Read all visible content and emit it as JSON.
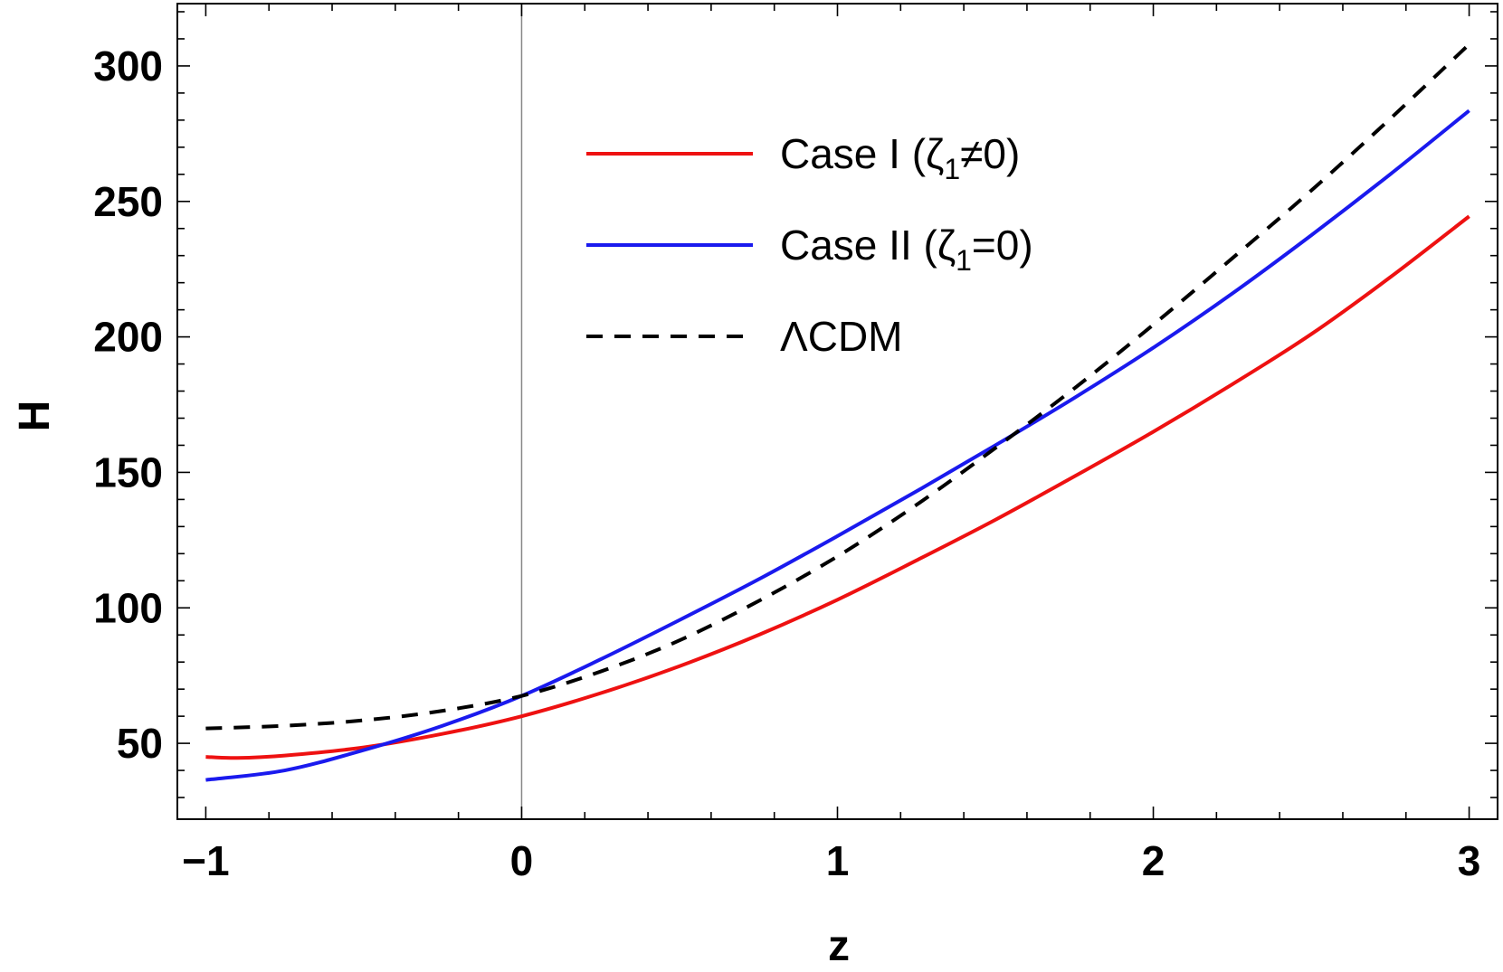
{
  "chart_data": {
    "type": "line",
    "xlabel": "z",
    "ylabel": "H",
    "xlim": [
      -1.09,
      3.09
    ],
    "ylim": [
      22,
      323
    ],
    "x_ticks": [
      -1,
      0,
      1,
      2,
      3
    ],
    "x_tick_labels": [
      "−1",
      "0",
      "1",
      "2",
      "3"
    ],
    "y_ticks": [
      50,
      100,
      150,
      200,
      250,
      300
    ],
    "y_tick_labels": [
      "50",
      "100",
      "150",
      "200",
      "250",
      "300"
    ],
    "legend_position": "top-right",
    "series": [
      {
        "name": "Case I (ζ1≠0)",
        "label_main": "Case I (ζ",
        "label_sub": "1",
        "label_tail": "≠0)",
        "color": "#ee1111",
        "dash": "solid",
        "x": [
          -1,
          -0.9,
          -0.75,
          -0.5,
          -0.25,
          0,
          0.25,
          0.5,
          0.75,
          1,
          1.25,
          1.5,
          1.75,
          2,
          2.25,
          2.5,
          2.75,
          3
        ],
        "y": [
          45,
          44.6,
          45.5,
          48.5,
          53.5,
          60,
          68.5,
          78.5,
          90,
          103,
          117.5,
          132.5,
          148.5,
          165,
          182.5,
          201,
          222,
          244.5
        ]
      },
      {
        "name": "Case II (ζ1=0)",
        "label_main": "Case II (ζ",
        "label_sub": "1",
        "label_tail": "=0)",
        "color": "#1a1aee",
        "dash": "solid",
        "x": [
          -1,
          -0.75,
          -0.5,
          -0.25,
          0,
          0.25,
          0.5,
          0.75,
          1,
          1.25,
          1.5,
          1.75,
          2,
          2.25,
          2.5,
          2.75,
          3
        ],
        "y": [
          36.5,
          40,
          47.5,
          56.5,
          67.5,
          81,
          95.5,
          110.5,
          126.5,
          143,
          160,
          177.5,
          196,
          216,
          237.5,
          260,
          283.5
        ]
      },
      {
        "name": "ΛCDM",
        "label_main": "ΛCDM",
        "label_sub": "",
        "label_tail": "",
        "color": "#000000",
        "dash": "dashed",
        "x": [
          -1,
          -0.75,
          -0.5,
          -0.25,
          0,
          0.25,
          0.5,
          0.75,
          1,
          1.25,
          1.5,
          1.75,
          2,
          2.25,
          2.5,
          2.75,
          3
        ],
        "y": [
          55.5,
          56.5,
          58.5,
          62,
          67.5,
          76.5,
          88,
          102.5,
          119,
          138,
          159,
          181,
          204.5,
          229,
          254,
          280.5,
          308
        ]
      }
    ]
  }
}
